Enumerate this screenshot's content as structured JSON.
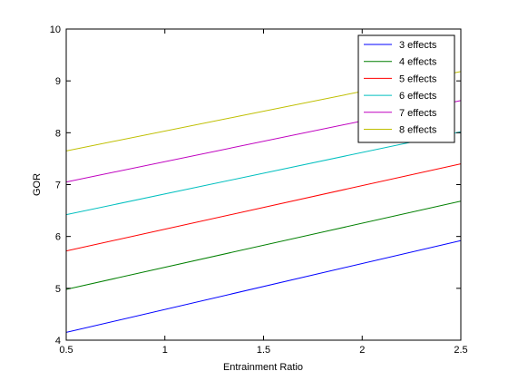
{
  "chart_data": {
    "type": "line",
    "xlabel": "Entrainment Ratio",
    "ylabel": "GOR",
    "xlim": [
      0.5,
      2.5
    ],
    "ylim": [
      4,
      10
    ],
    "xticks": [
      0.5,
      1,
      1.5,
      2,
      2.5
    ],
    "xtick_labels": [
      "0.5",
      "1",
      "1.5",
      "2",
      "2.5"
    ],
    "yticks": [
      4,
      5,
      6,
      7,
      8,
      9,
      10
    ],
    "ytick_labels": [
      "4",
      "5",
      "6",
      "7",
      "8",
      "9",
      "10"
    ],
    "grid": false,
    "legend_position": "top-right",
    "series": [
      {
        "name": "3 effects",
        "color": "#0000ff",
        "x": [
          0.5,
          2.5
        ],
        "y": [
          4.15,
          5.92
        ]
      },
      {
        "name": "4 effects",
        "color": "#007f00",
        "x": [
          0.5,
          2.5
        ],
        "y": [
          4.98,
          6.68
        ]
      },
      {
        "name": "5 effects",
        "color": "#ff0000",
        "x": [
          0.5,
          2.5
        ],
        "y": [
          5.72,
          7.4
        ]
      },
      {
        "name": "6 effects",
        "color": "#00bfbf",
        "x": [
          0.5,
          2.5
        ],
        "y": [
          6.42,
          8.02
        ]
      },
      {
        "name": "7 effects",
        "color": "#bf00bf",
        "x": [
          0.5,
          2.5
        ],
        "y": [
          7.05,
          8.62
        ]
      },
      {
        "name": "8 effects",
        "color": "#bfbf00",
        "x": [
          0.5,
          2.5
        ],
        "y": [
          7.65,
          9.18
        ]
      }
    ]
  }
}
